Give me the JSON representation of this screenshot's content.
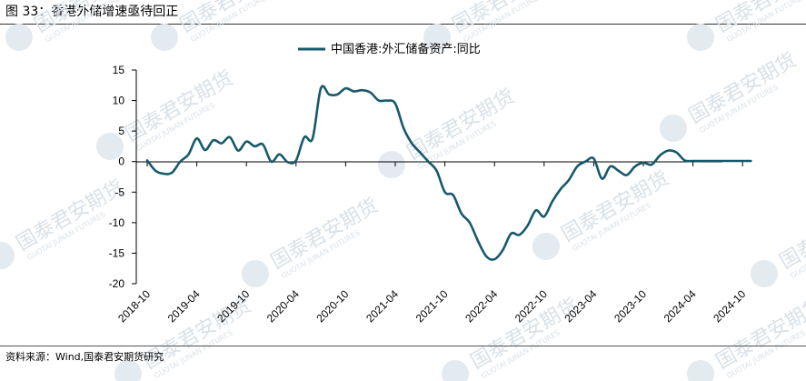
{
  "figure": {
    "title": "图 33：香港外储增速亟待回正",
    "source": "资料来源：Wind,国泰君安期货研究"
  },
  "watermark": {
    "text": "国泰君安期货",
    "subtext": "GUOTAI JUNAN FUTURES"
  },
  "colors": {
    "line": "#17596b",
    "axis": "#000000"
  },
  "chart_data": {
    "type": "line",
    "title": "",
    "xlabel": "",
    "ylabel": "",
    "ylim": [
      -20,
      15
    ],
    "yticks": [
      15,
      10,
      5,
      0,
      -5,
      -10,
      -15,
      -20
    ],
    "xticks": [
      "2018-10",
      "2019-04",
      "2019-10",
      "2020-04",
      "2020-10",
      "2021-04",
      "2021-10",
      "2022-04",
      "2022-10",
      "2023-04",
      "2023-10",
      "2024-04",
      "2024-10"
    ],
    "grid": false,
    "legend_position": "top-center",
    "series": [
      {
        "name": "中国香港:外汇储备资产:同比",
        "x": [
          "2018-10",
          "2018-11",
          "2018-12",
          "2019-01",
          "2019-02",
          "2019-03",
          "2019-04",
          "2019-05",
          "2019-06",
          "2019-07",
          "2019-08",
          "2019-09",
          "2019-10",
          "2019-11",
          "2019-12",
          "2020-01",
          "2020-02",
          "2020-03",
          "2020-04",
          "2020-05",
          "2020-06",
          "2020-07",
          "2020-08",
          "2020-09",
          "2020-10",
          "2020-11",
          "2020-12",
          "2021-01",
          "2021-02",
          "2021-03",
          "2021-04",
          "2021-05",
          "2021-06",
          "2021-07",
          "2021-08",
          "2021-09",
          "2021-10",
          "2021-11",
          "2021-12",
          "2022-01",
          "2022-02",
          "2022-03",
          "2022-04",
          "2022-05",
          "2022-06",
          "2022-07",
          "2022-08",
          "2022-09",
          "2022-10",
          "2022-11",
          "2022-12",
          "2023-01",
          "2023-02",
          "2023-03",
          "2023-04",
          "2023-05",
          "2023-06",
          "2023-07",
          "2023-08",
          "2023-09",
          "2023-10",
          "2023-11",
          "2023-12",
          "2024-01",
          "2024-02",
          "2024-03",
          "2024-04",
          "2024-05",
          "2024-06",
          "2024-07",
          "2024-08",
          "2024-09",
          "2024-10",
          "2024-11"
        ],
        "values": [
          0.2,
          -1.5,
          -2.0,
          -1.8,
          0.0,
          1.2,
          3.8,
          1.9,
          3.5,
          3.0,
          4.0,
          1.8,
          3.3,
          2.5,
          2.8,
          0.0,
          1.2,
          -0.1,
          0.2,
          4.0,
          3.8,
          12.0,
          11.0,
          11.0,
          12.0,
          11.5,
          11.7,
          11.3,
          10.0,
          10.0,
          9.5,
          5.5,
          3.0,
          1.5,
          0.0,
          -1.5,
          -5.0,
          -5.5,
          -8.5,
          -10.0,
          -13.0,
          -15.5,
          -16.0,
          -14.5,
          -11.8,
          -12.0,
          -10.5,
          -8.0,
          -9.0,
          -6.5,
          -4.5,
          -3.0,
          -0.8,
          0.0,
          0.5,
          -2.8,
          -0.8,
          -1.5,
          -2.2,
          -0.8,
          -0.2,
          -0.5,
          1.0,
          1.8,
          1.5,
          0.2,
          0.1,
          0.1,
          0.1,
          0.1,
          0.1,
          0.1,
          0.1,
          0.1
        ]
      }
    ]
  }
}
